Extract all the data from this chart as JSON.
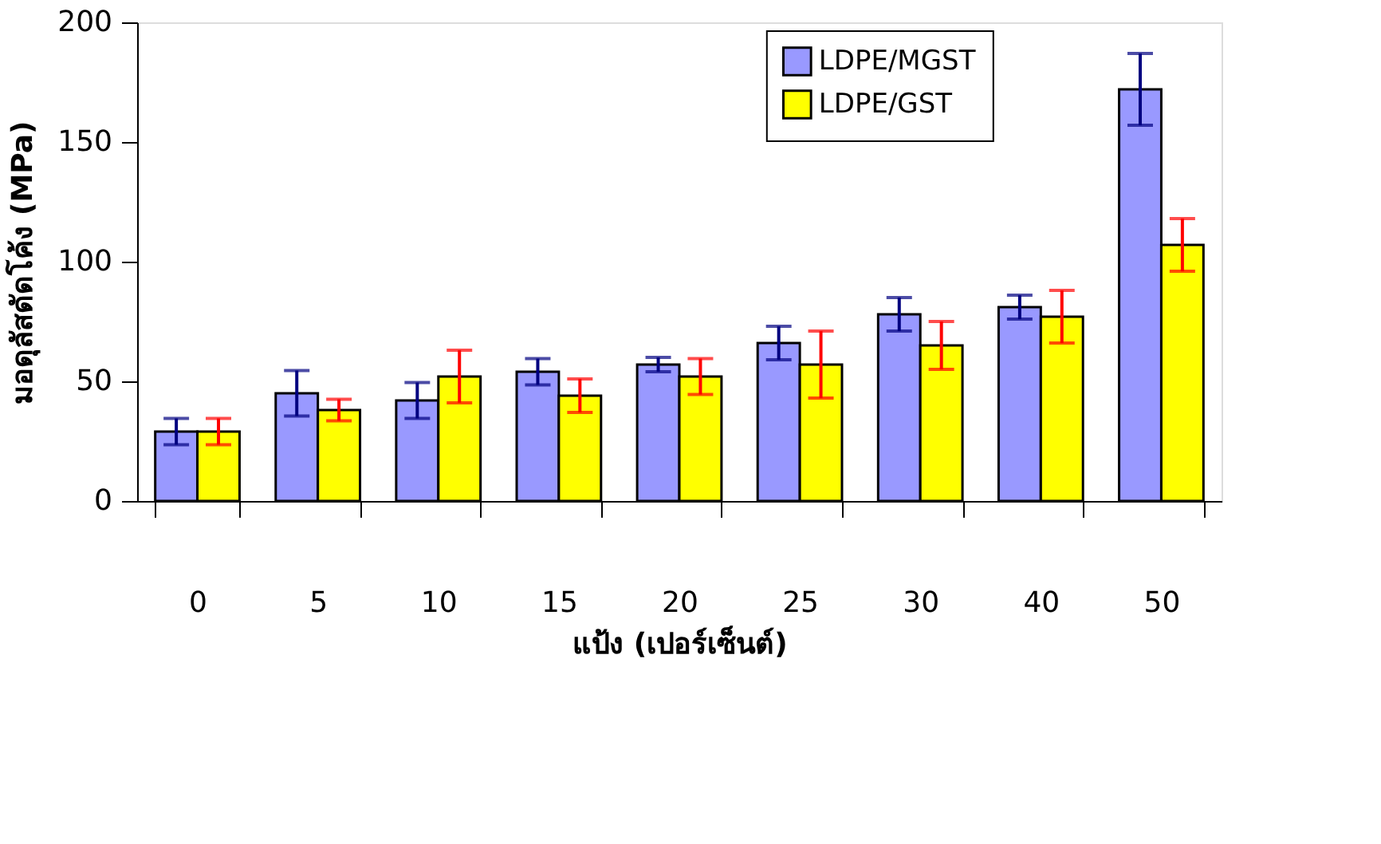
{
  "chart_data": {
    "type": "bar",
    "xlabel": "แป้ง (เปอร์เซ็นต์)",
    "ylabel": "มอดุลัสดัดโค้ง (MPa)",
    "categories": [
      "0",
      "5",
      "10",
      "15",
      "20",
      "25",
      "30",
      "40",
      "50"
    ],
    "series": [
      {
        "name": "LDPE/MGST",
        "color": "#9999ff",
        "values": [
          29,
          45,
          42,
          54,
          57,
          66,
          78,
          81,
          172
        ],
        "errors": [
          5.5,
          9.5,
          7.5,
          5.5,
          3,
          7,
          7,
          5,
          15
        ]
      },
      {
        "name": "LDPE/GST",
        "color": "#ffff00",
        "values": [
          29,
          38,
          52,
          44,
          52,
          57,
          65,
          77,
          107
        ],
        "errors": [
          5.5,
          4.5,
          11,
          7,
          7.5,
          14,
          10,
          11,
          11
        ]
      }
    ],
    "ylim": [
      0,
      200
    ],
    "yticks": [
      0,
      50,
      100,
      150,
      200
    ],
    "grid": false,
    "legend": "top right"
  }
}
